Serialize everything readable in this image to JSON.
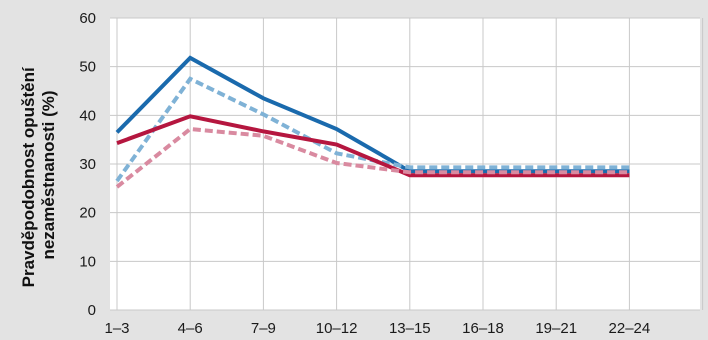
{
  "chart_data": {
    "type": "line",
    "title": "",
    "xlabel": "",
    "ylabel_line1": "Pravděpodobnost opuštění",
    "ylabel_line2": "nezaměstnanosti (%)",
    "categories": [
      "1–3",
      "4–6",
      "7–9",
      "10–12",
      "13–15",
      "16–18",
      "19–21",
      "22–24"
    ],
    "ylim": [
      0,
      60
    ],
    "yticks": [
      0,
      10,
      20,
      30,
      40,
      50,
      60
    ],
    "grid": true,
    "legend": "none",
    "series": [
      {
        "color": "#1a6aad",
        "style": "solid",
        "values": [
          36.5,
          51.8,
          43.5,
          37.2,
          28.5,
          28.5,
          28.5,
          28.5
        ]
      },
      {
        "color": "#7fb2d6",
        "style": "dashed",
        "values": [
          26.5,
          47.5,
          40.2,
          32.2,
          29.3,
          29.3,
          29.3,
          29.3
        ]
      },
      {
        "color": "#b5163f",
        "style": "solid",
        "values": [
          34.3,
          39.8,
          36.7,
          34.0,
          27.7,
          27.7,
          27.7,
          27.7
        ]
      },
      {
        "color": "#d98aa0",
        "style": "dashed",
        "values": [
          25.3,
          37.2,
          35.8,
          30.2,
          28.3,
          28.3,
          28.3,
          28.3
        ]
      }
    ]
  }
}
